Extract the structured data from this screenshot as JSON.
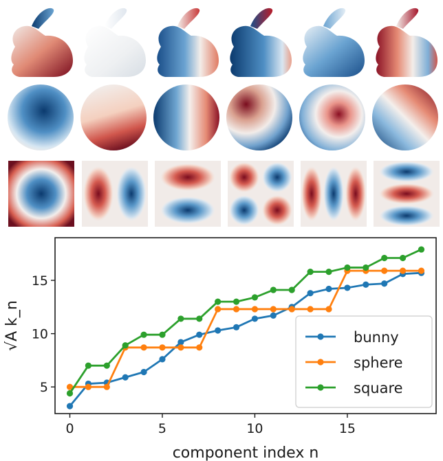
{
  "figure": {
    "rows": [
      {
        "name": "bunny",
        "modes": [
          "mode-1",
          "mode-2",
          "mode-3",
          "mode-4",
          "mode-5",
          "mode-6"
        ]
      },
      {
        "name": "sphere",
        "modes": [
          "mode-1",
          "mode-2",
          "mode-3",
          "mode-4",
          "mode-5",
          "mode-6"
        ]
      },
      {
        "name": "square",
        "modes": [
          "mode-1",
          "mode-2",
          "mode-3",
          "mode-4",
          "mode-5",
          "mode-6"
        ]
      }
    ],
    "colormap": {
      "low": "#0b3a6e",
      "mid": "#f4f1ef",
      "high": "#7a0c1e"
    }
  },
  "chart_data": {
    "type": "line",
    "xlabel": "component index n",
    "ylabel": "√A k_n",
    "xlim": [
      -0.8,
      19.8
    ],
    "ylim": [
      2.5,
      19.0
    ],
    "xticks": [
      "0",
      "5",
      "10",
      "15"
    ],
    "yticks": [
      "5",
      "10",
      "15"
    ],
    "grid": false,
    "legend": "lower-right",
    "x": [
      0,
      1,
      2,
      3,
      4,
      5,
      6,
      7,
      8,
      9,
      10,
      11,
      12,
      13,
      14,
      15,
      16,
      17,
      18,
      19
    ],
    "series": [
      {
        "name": "bunny",
        "color": "#1f77b4",
        "step": false,
        "values": [
          3.2,
          5.3,
          5.4,
          5.9,
          6.4,
          7.6,
          9.2,
          9.9,
          10.3,
          10.6,
          11.4,
          11.7,
          12.5,
          13.8,
          14.2,
          14.3,
          14.6,
          14.7,
          15.6,
          15.7
        ]
      },
      {
        "name": "sphere",
        "color": "#ff7f0e",
        "step": true,
        "values": [
          5.0,
          5.0,
          5.0,
          8.7,
          8.7,
          8.7,
          8.7,
          8.7,
          12.3,
          12.3,
          12.3,
          12.3,
          12.3,
          12.3,
          12.3,
          15.9,
          15.9,
          15.9,
          15.9,
          15.9
        ]
      },
      {
        "name": "square",
        "color": "#2ca02c",
        "step": true,
        "values": [
          4.4,
          7.0,
          7.0,
          8.9,
          9.9,
          9.9,
          11.4,
          11.4,
          13.0,
          13.0,
          13.4,
          14.1,
          14.1,
          15.8,
          15.8,
          16.2,
          16.2,
          17.1,
          17.1,
          17.9
        ]
      }
    ]
  }
}
